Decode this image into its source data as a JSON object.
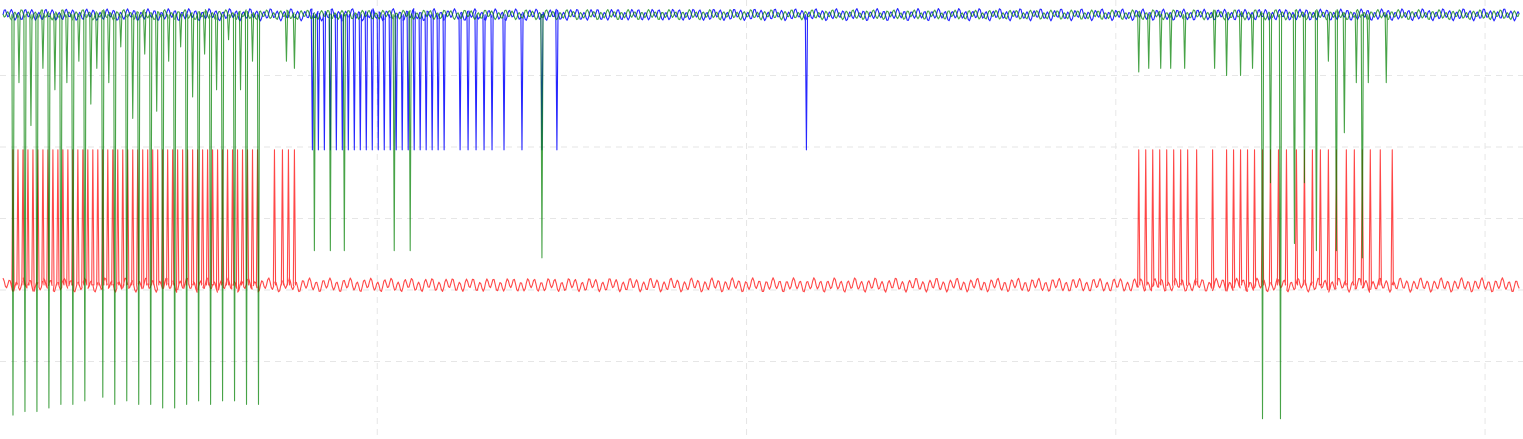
{
  "chart_data": {
    "type": "line",
    "title": "",
    "xlabel": "",
    "ylabel": "",
    "grid": true,
    "legend": "none",
    "x_range": [
      0,
      1520
    ],
    "y_range": [
      0,
      6
    ],
    "x_gridlines": [
      375,
      745,
      1115,
      1485
    ],
    "y_gridlines": [
      1,
      2,
      3,
      4,
      5
    ],
    "series": [
      {
        "color": "#0000ff",
        "baseline": 5.85,
        "spike_low": 3.96,
        "noise_amp": 0.06,
        "spikes_x": [
          310,
          316,
          322,
          328,
          334,
          340,
          346,
          352,
          358,
          364,
          370,
          376,
          382,
          388,
          394,
          400,
          406,
          412,
          418,
          424,
          430,
          436,
          442,
          458,
          466,
          474,
          482,
          490,
          502,
          520,
          540,
          555,
          805
        ]
      },
      {
        "color": "#ff0000",
        "baseline": 2.07,
        "spike_high": 3.96,
        "noise_amp": 0.07,
        "spikes_x": [
          10,
          15,
          20,
          25,
          30,
          35,
          40,
          45,
          50,
          55,
          60,
          65,
          70,
          75,
          80,
          85,
          90,
          95,
          100,
          105,
          110,
          115,
          120,
          125,
          130,
          135,
          140,
          145,
          150,
          155,
          160,
          165,
          170,
          175,
          180,
          185,
          190,
          195,
          200,
          205,
          210,
          215,
          220,
          225,
          230,
          235,
          240,
          245,
          250,
          255,
          272,
          280,
          286,
          292,
          1138,
          1145,
          1152,
          1159,
          1166,
          1173,
          1180,
          1187,
          1196,
          1212,
          1226,
          1233,
          1240,
          1247,
          1254,
          1262,
          1270,
          1278,
          1286,
          1296,
          1304,
          1312,
          1320,
          1328,
          1336,
          1346,
          1354,
          1362,
          1370,
          1380,
          1392
        ]
      },
      {
        "color": "#008000",
        "baseline": 5.85,
        "noise_amp": 0.05,
        "spikes": [
          [
            10,
            0.25
          ],
          [
            16,
            4.9
          ],
          [
            22,
            0.3
          ],
          [
            28,
            4.3
          ],
          [
            34,
            0.3
          ],
          [
            40,
            5.1
          ],
          [
            46,
            0.35
          ],
          [
            52,
            4.8
          ],
          [
            58,
            0.4
          ],
          [
            64,
            4.9
          ],
          [
            70,
            0.4
          ],
          [
            76,
            5.2
          ],
          [
            82,
            0.45
          ],
          [
            88,
            4.6
          ],
          [
            94,
            5.1
          ],
          [
            100,
            0.5
          ],
          [
            106,
            4.9
          ],
          [
            112,
            0.4
          ],
          [
            118,
            5.4
          ],
          [
            124,
            0.45
          ],
          [
            130,
            4.4
          ],
          [
            136,
            0.4
          ],
          [
            142,
            5.3
          ],
          [
            148,
            0.4
          ],
          [
            154,
            4.5
          ],
          [
            160,
            0.35
          ],
          [
            166,
            5.2
          ],
          [
            172,
            0.35
          ],
          [
            178,
            5.4
          ],
          [
            184,
            0.4
          ],
          [
            190,
            4.7
          ],
          [
            196,
            0.45
          ],
          [
            202,
            5.3
          ],
          [
            208,
            0.4
          ],
          [
            214,
            4.8
          ],
          [
            220,
            0.45
          ],
          [
            226,
            5.5
          ],
          [
            232,
            0.45
          ],
          [
            238,
            4.8
          ],
          [
            244,
            0.4
          ],
          [
            250,
            5.2
          ],
          [
            256,
            0.4
          ],
          [
            284,
            5.2
          ],
          [
            292,
            5.1
          ],
          [
            312,
            2.55
          ],
          [
            328,
            2.55
          ],
          [
            342,
            2.55
          ],
          [
            392,
            2.55
          ],
          [
            408,
            2.55
          ],
          [
            540,
            2.45
          ],
          [
            1138,
            5.05
          ],
          [
            1148,
            5.1
          ],
          [
            1160,
            5.1
          ],
          [
            1170,
            5.1
          ],
          [
            1184,
            5.1
          ],
          [
            1214,
            5.1
          ],
          [
            1226,
            5.0
          ],
          [
            1240,
            5.0
          ],
          [
            1252,
            5.1
          ],
          [
            1262,
            0.2
          ],
          [
            1270,
            3.5
          ],
          [
            1280,
            0.2
          ],
          [
            1294,
            2.65
          ],
          [
            1304,
            3.5
          ],
          [
            1316,
            2.55
          ],
          [
            1328,
            5.2
          ],
          [
            1336,
            2.55
          ],
          [
            1344,
            4.2
          ],
          [
            1356,
            4.9
          ],
          [
            1362,
            2.45
          ],
          [
            1368,
            4.9
          ],
          [
            1386,
            4.9
          ]
        ]
      }
    ]
  }
}
